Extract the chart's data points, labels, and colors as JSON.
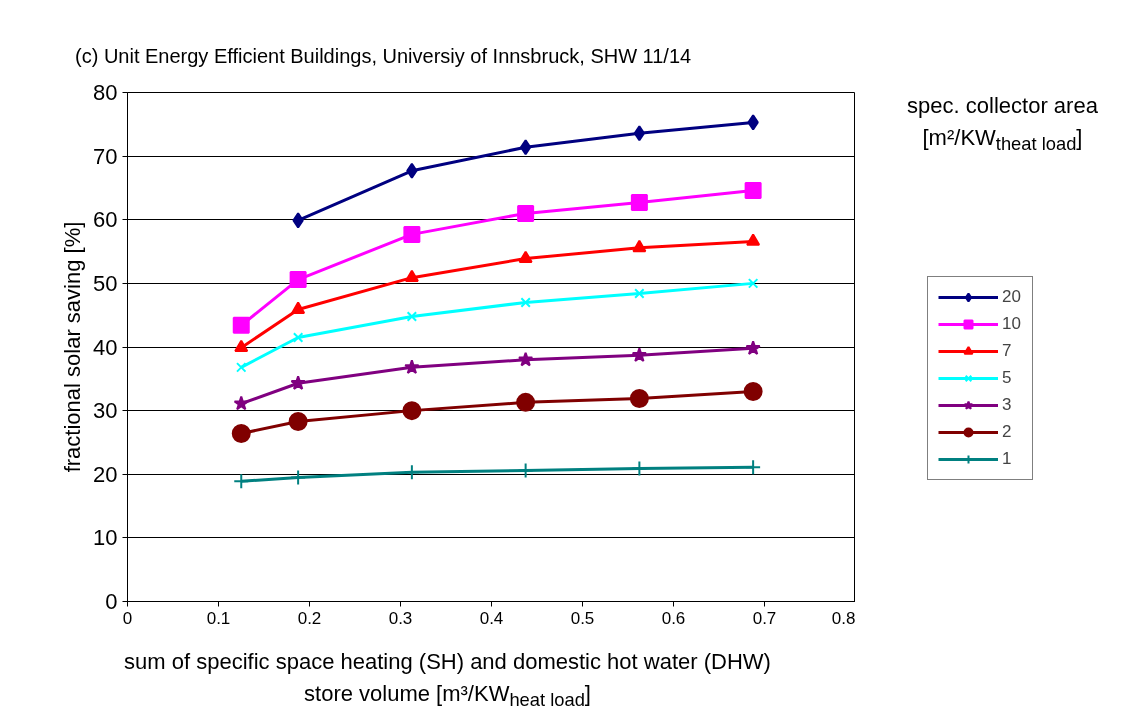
{
  "chart_data": {
    "type": "line",
    "title": "(c) Unit Energy Efficient Buildings, Universiy of Innsbruck, SHW 11/14",
    "xlabel": "sum of specific space heating (SH) and domestic hot water (DHW)\nstore volume [m³/KW$_{heat load}$]",
    "ylabel": "fractional solar saving [%]",
    "legend_title": "spec. collector area\n[m²/KW$_{theat load}$]",
    "x": [
      0.125,
      0.1875,
      0.3125,
      0.4375,
      0.5625,
      0.6875
    ],
    "xlim": [
      0,
      0.8
    ],
    "xticks": [
      0,
      0.1,
      0.2,
      0.3,
      0.4,
      0.5,
      0.6,
      0.7,
      0.8
    ],
    "ylim": [
      0,
      80
    ],
    "yticks": [
      0,
      10,
      20,
      30,
      40,
      50,
      60,
      70,
      80
    ],
    "grid": "y",
    "legend": "right",
    "line_style": "solid",
    "series": [
      {
        "name": "20",
        "color": "#000080",
        "marker": "diamond",
        "values": [
          null,
          59.9,
          67.7,
          71.4,
          73.6,
          75.3
        ]
      },
      {
        "name": "10",
        "color": "#ff00ff",
        "marker": "square",
        "values": [
          43.4,
          50.6,
          57.7,
          61.0,
          62.7,
          64.6
        ]
      },
      {
        "name": "7",
        "color": "#ff0000",
        "marker": "triangle",
        "values": [
          39.9,
          45.9,
          50.9,
          53.9,
          55.6,
          56.6
        ]
      },
      {
        "name": "5",
        "color": "#00ffff",
        "marker": "cross",
        "values": [
          36.8,
          41.5,
          44.8,
          47.0,
          48.4,
          50.0
        ]
      },
      {
        "name": "3",
        "color": "#800080",
        "marker": "star",
        "values": [
          31.1,
          34.3,
          36.8,
          38.0,
          38.7,
          39.8
        ]
      },
      {
        "name": "2",
        "color": "#800000",
        "marker": "circle",
        "values": [
          26.4,
          28.3,
          30.0,
          31.3,
          31.9,
          33.0
        ]
      },
      {
        "name": "1",
        "color": "#008080",
        "marker": "plus",
        "values": [
          18.9,
          19.5,
          20.3,
          20.6,
          20.9,
          21.1
        ]
      }
    ]
  }
}
